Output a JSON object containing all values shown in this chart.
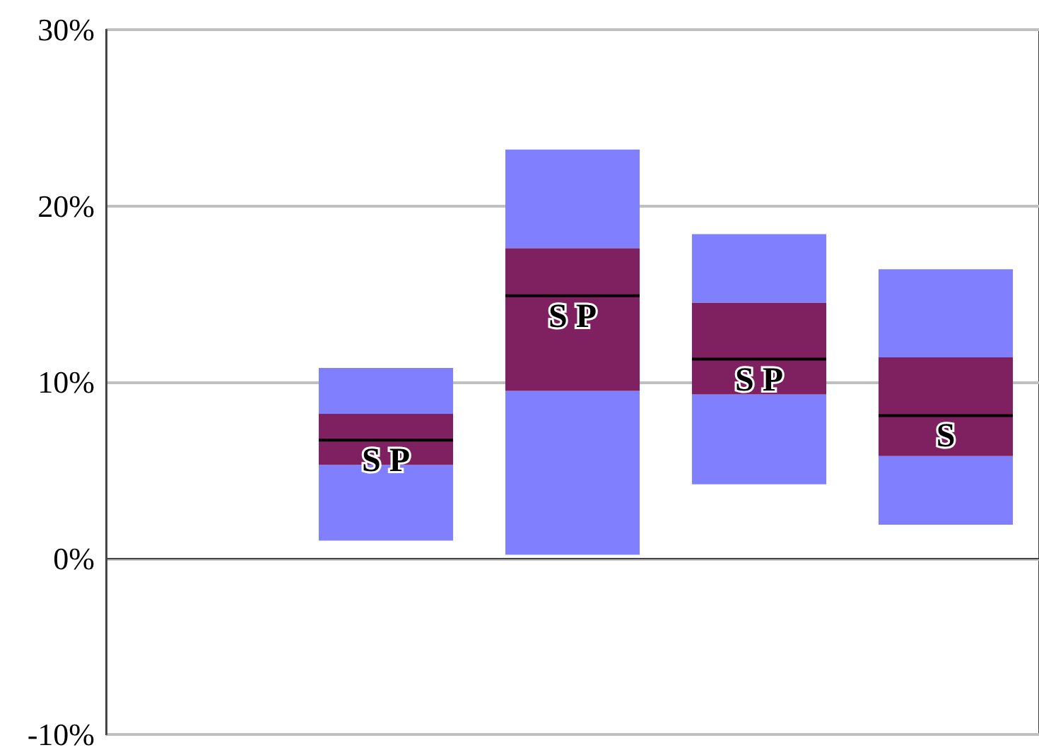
{
  "chart_data": {
    "type": "box",
    "categories": [
      null,
      null,
      null,
      null,
      null
    ],
    "boxes": [
      null,
      {
        "low": 1.0,
        "q1": 5.3,
        "median": 6.7,
        "q3": 8.2,
        "high": 10.8
      },
      {
        "low": 0.2,
        "q1": 9.5,
        "median": 14.9,
        "q3": 17.6,
        "high": 23.2
      },
      {
        "low": 4.2,
        "q1": 9.3,
        "median": 11.3,
        "q3": 14.5,
        "high": 18.4
      },
      {
        "low": 1.9,
        "q1": 5.8,
        "median": 8.1,
        "q3": 11.4,
        "high": 16.4
      }
    ],
    "color": "#7f2060",
    "annotations": [
      "S P",
      "S P",
      "S P",
      "S"
    ],
    "ylim": [
      -10,
      30
    ],
    "yticks": [
      {
        "value": -10,
        "label": "-10%"
      },
      {
        "value": 0,
        "label": "0%"
      },
      {
        "value": 10,
        "label": "10%"
      },
      {
        "value": 20,
        "label": "20%"
      },
      {
        "value": 30,
        "label": "30%"
      }
    ],
    "grid": "y"
  }
}
